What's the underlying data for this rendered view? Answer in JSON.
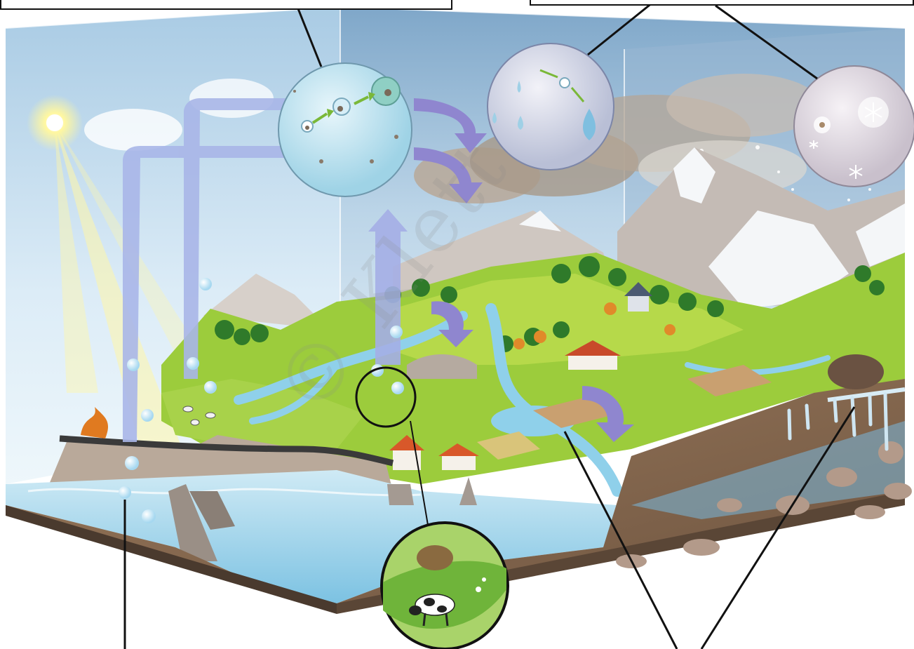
{
  "diagram": {
    "subject": "water-cycle",
    "label_boxes": [
      {
        "id": "top-left-box",
        "text": ""
      },
      {
        "id": "top-right-box",
        "text": ""
      }
    ],
    "insets": [
      {
        "id": "condensation-nuclei-inset",
        "icon": "droplet-growth-icon"
      },
      {
        "id": "raindrop-inset",
        "icon": "raindrop-icon"
      },
      {
        "id": "snowflake-inset",
        "icon": "snowflake-icon"
      },
      {
        "id": "cow-meadow-inset",
        "icon": "cow-icon"
      }
    ],
    "watermark": "© Klett"
  },
  "colors": {
    "sky_top": "#9fc3df",
    "sky_bottom": "#e8f3fa",
    "sun": "#fff6a8",
    "arrow_purple": "#8f86cf",
    "arrow_blue": "#a9b6e8",
    "grass": "#9ccc3c",
    "grass_dark": "#5f9a2a",
    "forest": "#2f7a2a",
    "water": "#8fd0ea",
    "rock": "#a69a90",
    "soil": "#8a6a50",
    "mountain": "#c9c2bd",
    "snow": "#f4f6f8",
    "cloud": "#b9a898",
    "leader_line": "#111111"
  }
}
